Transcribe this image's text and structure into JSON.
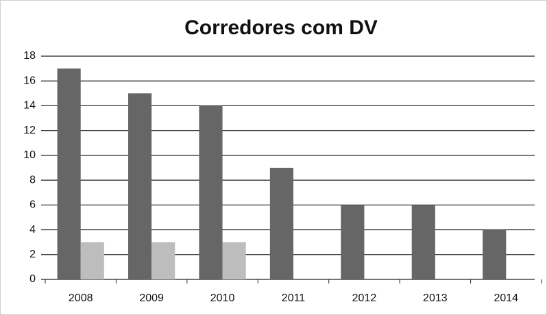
{
  "chart_data": {
    "type": "bar",
    "title": "Corredores com DV",
    "categories": [
      "2008",
      "2009",
      "2010",
      "2011",
      "2012",
      "2013",
      "2014"
    ],
    "series": [
      {
        "color": "#666666",
        "values": [
          17,
          15,
          14,
          9,
          6,
          6,
          4
        ]
      },
      {
        "color": "#bdbdbd",
        "values": [
          3,
          3,
          3,
          0,
          0,
          0,
          0
        ]
      }
    ],
    "ylim": [
      0,
      18
    ],
    "yticks": [
      0,
      2,
      4,
      6,
      8,
      10,
      12,
      14,
      16,
      18
    ],
    "grid": true
  }
}
